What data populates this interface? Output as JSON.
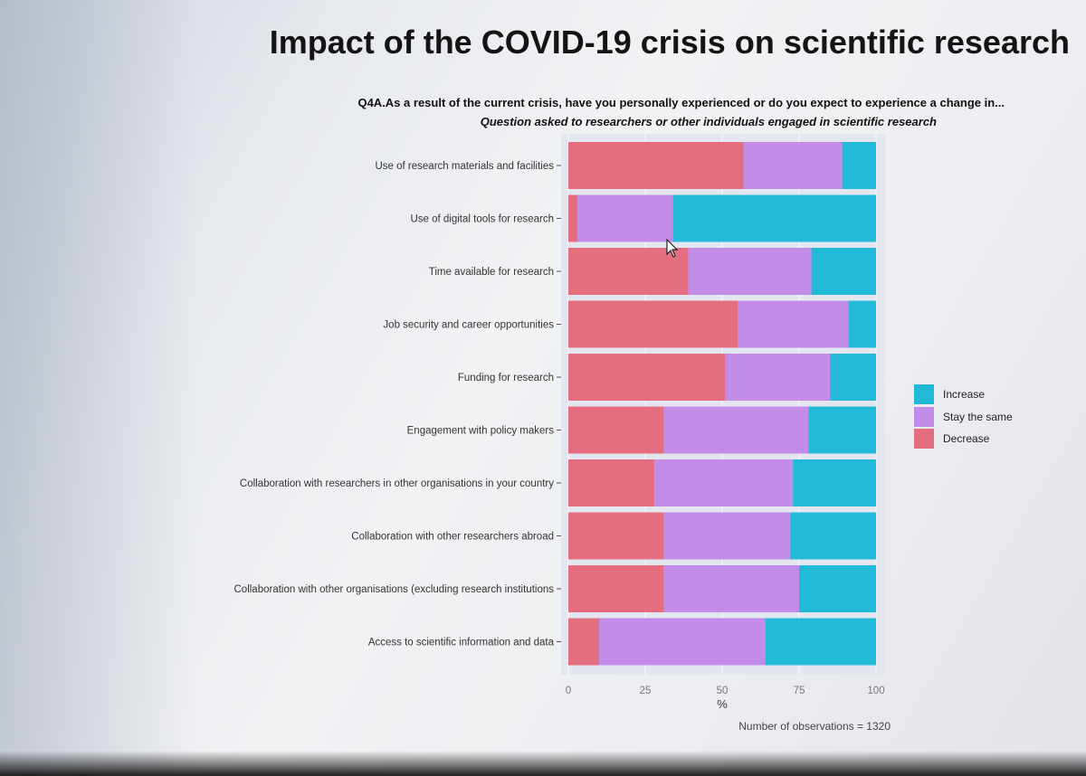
{
  "title": "Impact of the COVID-19 crisis on scientific research",
  "question": "Q4A.As a result of the current crisis, have you personally experienced or do you expect to experience a change in...",
  "subquestion": "Question asked to researchers or other individuals engaged in scientific research",
  "note": "Number of observations = 1320",
  "colors": {
    "decrease": "#e46d7f",
    "stay": "#c28ce8",
    "increase": "#23b9d9",
    "panel": "#e4e6ef"
  },
  "chart_data": {
    "type": "bar",
    "orientation": "horizontal",
    "stacked": true,
    "categories": [
      "Use of research materials and facilities",
      "Use of digital tools for research",
      "Time available for research",
      "Job security and career opportunities",
      "Funding for research",
      "Engagement with policy makers",
      "Collaboration with researchers in other organisations in your country",
      "Collaboration with other researchers abroad",
      "Collaboration with other organisations (excluding research institutions",
      "Access to scientific information and data"
    ],
    "series": [
      {
        "name": "Decrease",
        "values": [
          57,
          3,
          39,
          55,
          51,
          31,
          28,
          31,
          31,
          10
        ]
      },
      {
        "name": "Stay the same",
        "values": [
          32,
          31,
          40,
          36,
          34,
          47,
          45,
          41,
          44,
          54
        ]
      },
      {
        "name": "Increase",
        "values": [
          11,
          66,
          21,
          9,
          15,
          22,
          27,
          28,
          25,
          36
        ]
      }
    ],
    "xlabel": "%",
    "xlim": [
      0,
      100
    ],
    "xticks": [
      "0",
      "25",
      "50",
      "75",
      "100"
    ],
    "legend_order": [
      "Increase",
      "Stay the same",
      "Decrease"
    ],
    "legend_position": "right"
  }
}
